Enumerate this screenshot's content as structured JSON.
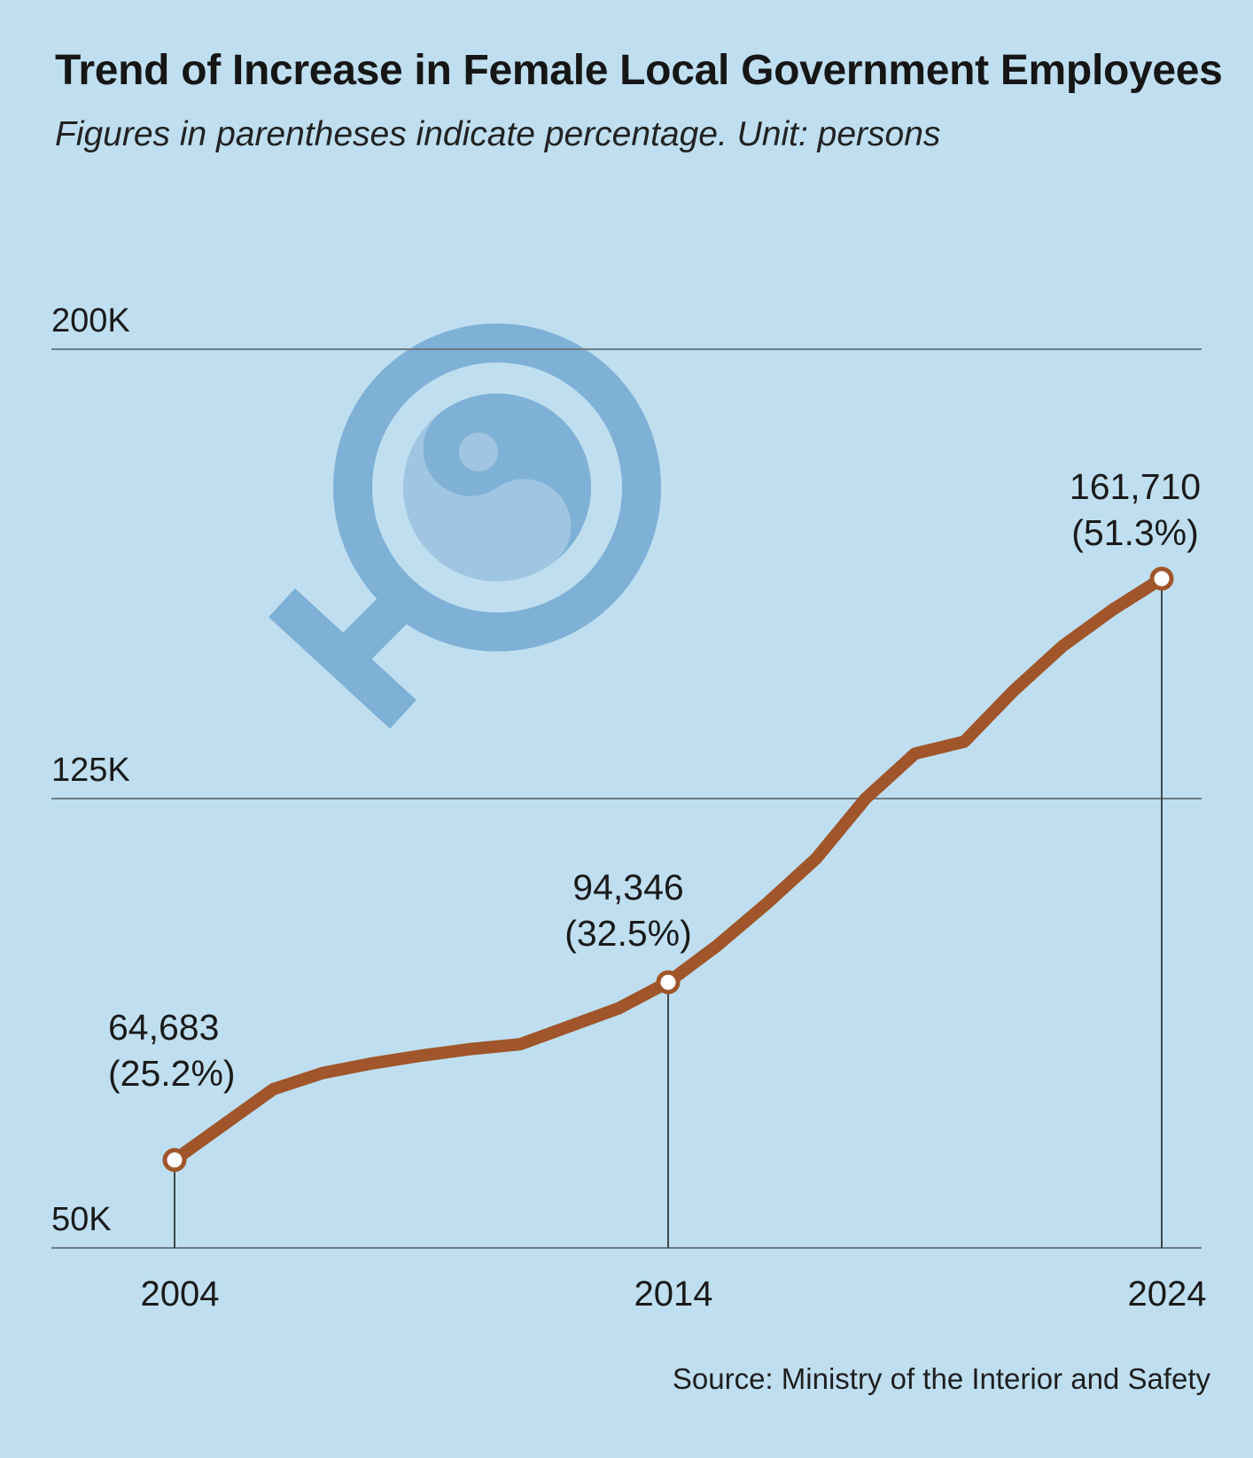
{
  "header": {
    "title": "Trend of Increase in Female Local Government Employees",
    "subtitle": "Figures in parentheses indicate percentage. Unit: persons"
  },
  "footer": {
    "source": "Source: Ministry of the Interior and Safety"
  },
  "colors": {
    "background": "#bfdff0",
    "line": "#a0552a",
    "grid": "#6d7b84",
    "emblem": "#7fb0d6"
  },
  "chart_data": {
    "type": "line",
    "title": "Trend of Increase in Female Local Government Employees",
    "xlabel": "",
    "ylabel": "",
    "ylim": [
      50000,
      200000
    ],
    "yticks": [
      {
        "value": 50000,
        "label": "50K"
      },
      {
        "value": 125000,
        "label": "125K"
      },
      {
        "value": 200000,
        "label": "200K"
      }
    ],
    "xlim": [
      2004,
      2024
    ],
    "xticks": [
      {
        "value": 2004,
        "label": "2004"
      },
      {
        "value": 2014,
        "label": "2014"
      },
      {
        "value": 2024,
        "label": "2024"
      }
    ],
    "grid": true,
    "series": [
      {
        "points": [
          {
            "x": 2004,
            "y": 64683
          },
          {
            "x": 2006,
            "y": 76500
          },
          {
            "x": 2007,
            "y": 79200
          },
          {
            "x": 2008,
            "y": 80800
          },
          {
            "x": 2009,
            "y": 82100
          },
          {
            "x": 2010,
            "y": 83200
          },
          {
            "x": 2011,
            "y": 84000
          },
          {
            "x": 2012,
            "y": 87000
          },
          {
            "x": 2013,
            "y": 90000
          },
          {
            "x": 2014,
            "y": 94346
          },
          {
            "x": 2015,
            "y": 100500
          },
          {
            "x": 2016,
            "y": 107500
          },
          {
            "x": 2017,
            "y": 115000
          },
          {
            "x": 2018,
            "y": 125000
          },
          {
            "x": 2019,
            "y": 132500
          },
          {
            "x": 2020,
            "y": 134500
          },
          {
            "x": 2021,
            "y": 143000
          },
          {
            "x": 2022,
            "y": 150500
          },
          {
            "x": 2023,
            "y": 156500
          },
          {
            "x": 2024,
            "y": 161710
          }
        ]
      }
    ],
    "annotations": [
      {
        "x": 2004,
        "y": 64683,
        "value": "64,683",
        "pct": "(25.2%)"
      },
      {
        "x": 2014,
        "y": 94346,
        "value": "94,346",
        "pct": "(32.5%)"
      },
      {
        "x": 2024,
        "y": 161710,
        "value": "161,710",
        "pct": "(51.3%)"
      }
    ]
  }
}
